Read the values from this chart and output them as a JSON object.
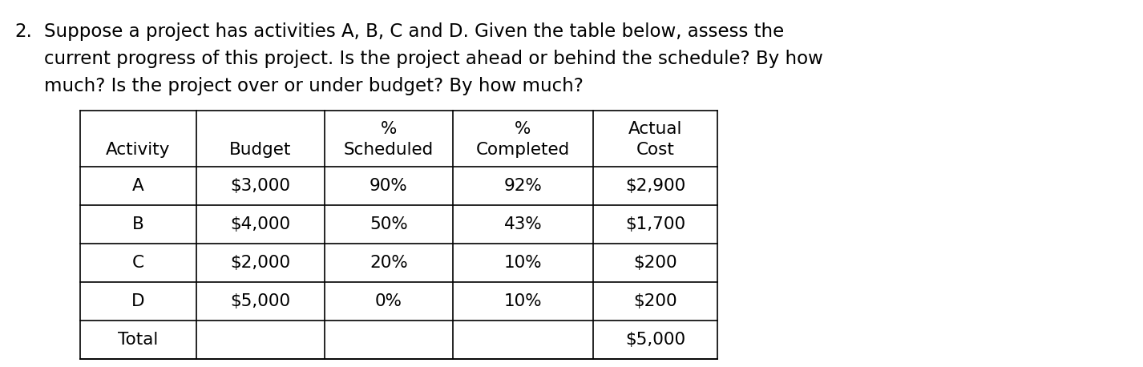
{
  "question_number": "2.",
  "question_text_line1": "Suppose a project has activities A, B, C and D. Given the table below, assess the",
  "question_text_line2": "current progress of this project. Is the project ahead or behind the schedule? By how",
  "question_text_line3": "much? Is the project over or under budget? By how much?",
  "col_headers": [
    [
      "",
      "Activity"
    ],
    [
      "",
      "Budget"
    ],
    [
      "%",
      "Scheduled"
    ],
    [
      "%",
      "Completed"
    ],
    [
      "Actual",
      "Cost"
    ]
  ],
  "rows": [
    [
      "A",
      "$3,000",
      "90%",
      "92%",
      "$2,900"
    ],
    [
      "B",
      "$4,000",
      "50%",
      "43%",
      "$1,700"
    ],
    [
      "C",
      "$2,000",
      "20%",
      "10%",
      "$200"
    ],
    [
      "D",
      "$5,000",
      "0%",
      "10%",
      "$200"
    ],
    [
      "Total",
      "",
      "",
      "",
      "$5,000"
    ]
  ],
  "background_color": "#ffffff",
  "text_color": "#000000",
  "font_size_question": 16.5,
  "font_size_table": 15.5
}
